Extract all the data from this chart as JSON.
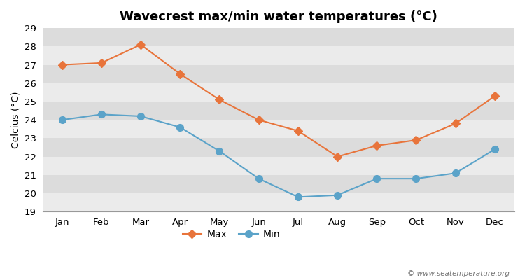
{
  "title": "Wavecrest max/min water temperatures (°C)",
  "ylabel": "Celcius (°C)",
  "months": [
    "Jan",
    "Feb",
    "Mar",
    "Apr",
    "May",
    "Jun",
    "Jul",
    "Aug",
    "Sep",
    "Oct",
    "Nov",
    "Dec"
  ],
  "max_temps": [
    27.0,
    27.1,
    28.1,
    26.5,
    25.1,
    24.0,
    23.4,
    22.0,
    22.6,
    22.9,
    23.8,
    25.3
  ],
  "min_temps": [
    24.0,
    24.3,
    24.2,
    23.6,
    22.3,
    20.8,
    19.8,
    19.9,
    20.8,
    20.8,
    21.1,
    22.4
  ],
  "max_color": "#e8743b",
  "min_color": "#5ba3c9",
  "figure_bg_color": "#ffffff",
  "plot_bg_color": "#e8e8e8",
  "band_color_light": "#ebebeb",
  "band_color_dark": "#dcdcdc",
  "ylim": [
    19,
    29
  ],
  "yticks": [
    19,
    20,
    21,
    22,
    23,
    24,
    25,
    26,
    27,
    28,
    29
  ],
  "legend_labels": [
    "Max",
    "Min"
  ],
  "watermark": "© www.seatemperature.org",
  "title_fontsize": 13,
  "axis_label_fontsize": 10,
  "tick_fontsize": 9.5,
  "legend_fontsize": 10,
  "max_marker": "D",
  "min_marker": "o",
  "line_width": 1.5,
  "max_marker_size": 6,
  "min_marker_size": 7
}
